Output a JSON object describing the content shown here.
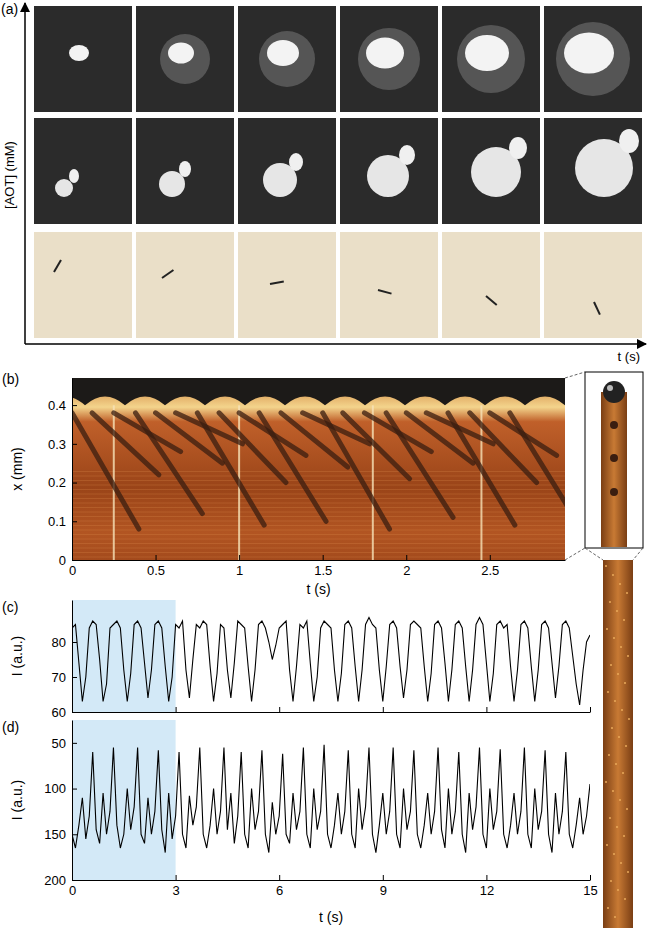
{
  "chart_data": [
    {
      "type": "photo-grid",
      "title": "(a)",
      "xlabel": "t (s)",
      "ylabel": "[AOT] (mM)"
    },
    {
      "type": "kymograph",
      "title": "(b)",
      "xlabel": "t (s)",
      "ylabel": "x (mm)",
      "color": "#3a1e10",
      "xlim": [
        0,
        2.95
      ],
      "ylim": [
        0,
        0.47
      ],
      "xticks": [
        0,
        0.5,
        1,
        1.5,
        2,
        2.5
      ],
      "yticks": [
        0,
        0.1,
        0.2,
        0.3,
        0.4
      ],
      "flashes": [
        0.25,
        1.0,
        1.8,
        2.45
      ],
      "series": [
        {
          "x": [
            0,
            0.4
          ],
          "values": [
            0.38,
            0.08
          ]
        },
        {
          "x": [
            0.12,
            0.52
          ],
          "values": [
            0.38,
            0.22
          ]
        },
        {
          "x": [
            0.25,
            0.65
          ],
          "values": [
            0.38,
            0.28
          ]
        },
        {
          "x": [
            0.38,
            0.78
          ],
          "values": [
            0.38,
            0.12
          ]
        },
        {
          "x": [
            0.5,
            0.9
          ],
          "values": [
            0.38,
            0.25
          ]
        },
        {
          "x": [
            0.62,
            1.02
          ],
          "values": [
            0.38,
            0.3
          ]
        },
        {
          "x": [
            0.75,
            1.15
          ],
          "values": [
            0.38,
            0.09
          ]
        },
        {
          "x": [
            0.88,
            1.28
          ],
          "values": [
            0.38,
            0.2
          ]
        },
        {
          "x": [
            1.0,
            1.4
          ],
          "values": [
            0.38,
            0.27
          ]
        },
        {
          "x": [
            1.12,
            1.52
          ],
          "values": [
            0.38,
            0.1
          ]
        },
        {
          "x": [
            1.25,
            1.65
          ],
          "values": [
            0.38,
            0.24
          ]
        },
        {
          "x": [
            1.38,
            1.78
          ],
          "values": [
            0.38,
            0.3
          ]
        },
        {
          "x": [
            1.5,
            1.9
          ],
          "values": [
            0.38,
            0.08
          ]
        },
        {
          "x": [
            1.62,
            2.02
          ],
          "values": [
            0.38,
            0.21
          ]
        },
        {
          "x": [
            1.75,
            2.15
          ],
          "values": [
            0.38,
            0.28
          ]
        },
        {
          "x": [
            1.88,
            2.28
          ],
          "values": [
            0.38,
            0.11
          ]
        },
        {
          "x": [
            2.0,
            2.4
          ],
          "values": [
            0.38,
            0.25
          ]
        },
        {
          "x": [
            2.12,
            2.52
          ],
          "values": [
            0.38,
            0.3
          ]
        },
        {
          "x": [
            2.25,
            2.65
          ],
          "values": [
            0.38,
            0.09
          ]
        },
        {
          "x": [
            2.38,
            2.78
          ],
          "values": [
            0.38,
            0.2
          ]
        },
        {
          "x": [
            2.5,
            2.9
          ],
          "values": [
            0.38,
            0.27
          ]
        },
        {
          "x": [
            2.62,
            3.02
          ],
          "values": [
            0.38,
            0.1
          ]
        }
      ]
    },
    {
      "type": "line",
      "title": "(c)",
      "ylabel": "I (a.u.)",
      "xlim": [
        0,
        15
      ],
      "ylim": [
        60,
        92
      ],
      "xticks": [
        0,
        3,
        6,
        9,
        12,
        15
      ],
      "yticks": [
        60,
        70,
        80
      ],
      "tick_labels": "y",
      "shaded_range": [
        0,
        3
      ],
      "x": [
        0,
        0.1,
        0.2,
        0.3,
        0.4,
        0.5,
        0.6,
        0.7,
        0.8,
        0.9,
        1,
        1.1,
        1.2,
        1.3,
        1.4,
        1.5,
        1.6,
        1.7,
        1.8,
        1.9,
        2,
        2.1,
        2.2,
        2.3,
        2.4,
        2.5,
        2.6,
        2.7,
        2.8,
        2.9,
        3,
        3.1,
        3.2,
        3.3,
        3.4,
        3.5,
        3.6,
        3.7,
        3.8,
        3.9,
        4,
        4.1,
        4.2,
        4.3,
        4.4,
        4.5,
        4.6,
        4.7,
        4.8,
        4.9,
        5,
        5.1,
        5.2,
        5.3,
        5.4,
        5.5,
        5.6,
        5.7,
        5.8,
        5.9,
        6,
        6.1,
        6.2,
        6.3,
        6.4,
        6.5,
        6.6,
        6.7,
        6.8,
        6.9,
        7,
        7.1,
        7.2,
        7.3,
        7.4,
        7.5,
        7.6,
        7.7,
        7.8,
        7.9,
        8,
        8.1,
        8.2,
        8.3,
        8.4,
        8.5,
        8.6,
        8.7,
        8.8,
        8.9,
        9,
        9.1,
        9.2,
        9.3,
        9.4,
        9.5,
        9.6,
        9.7,
        9.8,
        9.9,
        10,
        10.1,
        10.2,
        10.3,
        10.4,
        10.5,
        10.6,
        10.7,
        10.8,
        10.9,
        11,
        11.1,
        11.2,
        11.3,
        11.4,
        11.5,
        11.6,
        11.7,
        11.8,
        11.9,
        12,
        12.1,
        12.2,
        12.3,
        12.4,
        12.5,
        12.6,
        12.7,
        12.8,
        12.9,
        13,
        13.1,
        13.2,
        13.3,
        13.4,
        13.5,
        13.6,
        13.7,
        13.8,
        13.9,
        14,
        14.1,
        14.2,
        14.3,
        14.4,
        14.5,
        14.6,
        14.7,
        14.8,
        14.9,
        15
      ],
      "series": [
        {
          "color": "#000000",
          "values": [
            84,
            85,
            74,
            63,
            70,
            84,
            86,
            85,
            75,
            63,
            68,
            84,
            85,
            86,
            84,
            72,
            63,
            71,
            85,
            86,
            84,
            74,
            64,
            72,
            85,
            86,
            84,
            73,
            63,
            70,
            85,
            84,
            86,
            72,
            64,
            75,
            85,
            84,
            86,
            85,
            73,
            63,
            71,
            85,
            84,
            72,
            64,
            74,
            86,
            85,
            84,
            73,
            63,
            72,
            85,
            86,
            84,
            80,
            75,
            79,
            84,
            85,
            86,
            72,
            63,
            73,
            85,
            84,
            86,
            74,
            63,
            70,
            84,
            86,
            85,
            84,
            72,
            63,
            71,
            85,
            86,
            84,
            73,
            63,
            72,
            85,
            87,
            85,
            84,
            72,
            63,
            73,
            85,
            86,
            84,
            73,
            64,
            72,
            85,
            86,
            85,
            84,
            73,
            63,
            71,
            85,
            86,
            84,
            74,
            63,
            72,
            85,
            86,
            84,
            73,
            63,
            72,
            85,
            87,
            85,
            74,
            63,
            71,
            85,
            86,
            84,
            85,
            73,
            63,
            72,
            85,
            86,
            84,
            73,
            63,
            72,
            85,
            86,
            84,
            74,
            64,
            73,
            85,
            86,
            84,
            76,
            68,
            62,
            72,
            80,
            82
          ]
        }
      ]
    },
    {
      "type": "line",
      "title": "(d)",
      "xlabel": "t (s)",
      "ylabel": "I (a.u.)",
      "xlim": [
        0,
        15
      ],
      "ylim": [
        200,
        25
      ],
      "xticks": [
        0,
        3,
        6,
        9,
        12,
        15
      ],
      "yticks": [
        50,
        100,
        150,
        200
      ],
      "shaded_range": [
        0,
        3
      ],
      "x": [
        0,
        0.1,
        0.2,
        0.3,
        0.4,
        0.5,
        0.6,
        0.7,
        0.8,
        0.9,
        1,
        1.1,
        1.2,
        1.3,
        1.4,
        1.5,
        1.6,
        1.7,
        1.8,
        1.9,
        2,
        2.1,
        2.2,
        2.3,
        2.4,
        2.5,
        2.6,
        2.7,
        2.8,
        2.9,
        3,
        3.1,
        3.2,
        3.3,
        3.4,
        3.5,
        3.6,
        3.7,
        3.8,
        3.9,
        4,
        4.1,
        4.2,
        4.3,
        4.4,
        4.5,
        4.6,
        4.7,
        4.8,
        4.9,
        5,
        5.1,
        5.2,
        5.3,
        5.4,
        5.5,
        5.6,
        5.7,
        5.8,
        5.9,
        6,
        6.1,
        6.2,
        6.3,
        6.4,
        6.5,
        6.6,
        6.7,
        6.8,
        6.9,
        7,
        7.1,
        7.2,
        7.3,
        7.4,
        7.5,
        7.6,
        7.7,
        7.8,
        7.9,
        8,
        8.1,
        8.2,
        8.3,
        8.4,
        8.5,
        8.6,
        8.7,
        8.8,
        8.9,
        9,
        9.1,
        9.2,
        9.3,
        9.4,
        9.5,
        9.6,
        9.7,
        9.8,
        9.9,
        10,
        10.1,
        10.2,
        10.3,
        10.4,
        10.5,
        10.6,
        10.7,
        10.8,
        10.9,
        11,
        11.1,
        11.2,
        11.3,
        11.4,
        11.5,
        11.6,
        11.7,
        11.8,
        11.9,
        12,
        12.1,
        12.2,
        12.3,
        12.4,
        12.5,
        12.6,
        12.7,
        12.8,
        12.9,
        13,
        13.1,
        13.2,
        13.3,
        13.4,
        13.5,
        13.6,
        13.7,
        13.8,
        13.9,
        14,
        14.1,
        14.2,
        14.3,
        14.4,
        14.5,
        14.6,
        14.7,
        14.8,
        14.9,
        15
      ],
      "series": [
        {
          "color": "#000000",
          "values": [
            150,
            165,
            140,
            110,
            155,
            130,
            60,
            145,
            160,
            105,
            150,
            125,
            55,
            140,
            165,
            150,
            100,
            145,
            120,
            55,
            150,
            160,
            110,
            150,
            125,
            58,
            145,
            170,
            105,
            155,
            130,
            60,
            150,
            165,
            108,
            140,
            120,
            55,
            150,
            165,
            140,
            100,
            150,
            125,
            55,
            145,
            105,
            160,
            130,
            60,
            150,
            165,
            100,
            145,
            125,
            58,
            150,
            170,
            115,
            150,
            130,
            62,
            150,
            160,
            105,
            145,
            125,
            55,
            150,
            165,
            100,
            145,
            125,
            52,
            150,
            165,
            140,
            105,
            150,
            125,
            58,
            150,
            165,
            100,
            145,
            120,
            55,
            150,
            170,
            140,
            105,
            150,
            125,
            55,
            150,
            165,
            100,
            145,
            125,
            58,
            150,
            165,
            140,
            105,
            150,
            125,
            55,
            145,
            165,
            100,
            150,
            125,
            60,
            150,
            170,
            105,
            145,
            120,
            55,
            150,
            165,
            100,
            145,
            125,
            57,
            150,
            165,
            140,
            105,
            150,
            125,
            55,
            150,
            165,
            100,
            145,
            125,
            58,
            150,
            170,
            105,
            150,
            125,
            60,
            150,
            165,
            140,
            110,
            150,
            130,
            95
          ]
        }
      ]
    }
  ]
}
